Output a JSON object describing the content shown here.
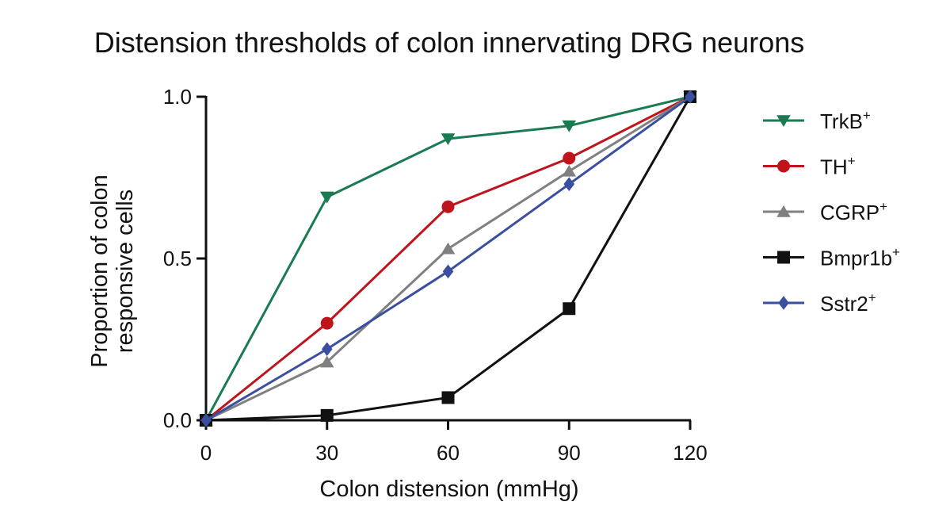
{
  "chart_data": {
    "type": "line",
    "title": "Distension thresholds of colon innervating DRG neurons",
    "xlabel": "Colon distension (mmHg)",
    "ylabel_lines": [
      "Proportion of colon",
      "responsive cells"
    ],
    "x": [
      0,
      30,
      60,
      90,
      120
    ],
    "x_ticks": [
      "0",
      "30",
      "60",
      "90",
      "120"
    ],
    "y_ticks": [
      "0.0",
      "0.5",
      "1.0"
    ],
    "xlim": [
      0,
      120
    ],
    "ylim": [
      0,
      1
    ],
    "legend_position": "right",
    "series": [
      {
        "name": "TrkB",
        "sup": "+",
        "color": "#1a7a52",
        "marker": "triangle-down",
        "values": [
          0,
          0.69,
          0.87,
          0.91,
          1.0
        ]
      },
      {
        "name": "TH",
        "sup": "+",
        "color": "#c0141c",
        "marker": "circle",
        "values": [
          0,
          0.3,
          0.66,
          0.81,
          1.0
        ]
      },
      {
        "name": "CGRP",
        "sup": "+",
        "color": "#808080",
        "marker": "triangle-up",
        "values": [
          0,
          0.18,
          0.53,
          0.77,
          1.0
        ]
      },
      {
        "name": "Bmpr1b",
        "sup": "+",
        "color": "#111111",
        "marker": "square",
        "values": [
          0,
          0.015,
          0.07,
          0.345,
          1.0
        ]
      },
      {
        "name": "Sstr2",
        "sup": "+",
        "color": "#3a4fa0",
        "marker": "diamond",
        "values": [
          0,
          0.22,
          0.46,
          0.73,
          1.0
        ]
      }
    ]
  }
}
